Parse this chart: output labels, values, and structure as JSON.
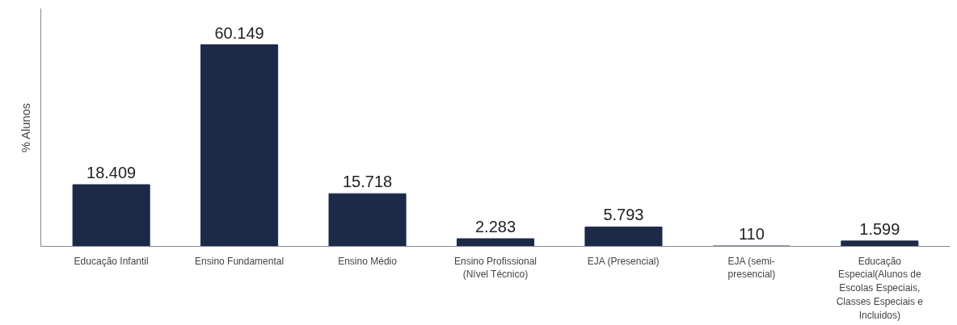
{
  "chart_data": {
    "type": "bar",
    "ylabel": "% Alunos",
    "categories": [
      "Educação Infantil",
      "Ensino Fundamental",
      "Ensino Médio",
      "Ensino Profissional (Nível Técnico)",
      "EJA (Presencial)",
      "EJA (semi-presencial)",
      "Educação Especial(Alunos de Escolas Especiais, Classes Especiais e Incluidos)"
    ],
    "values": [
      18409,
      60149,
      15718,
      2283,
      5793,
      110,
      1599
    ],
    "value_labels": [
      "18.409",
      "60.149",
      "15.718",
      "2.283",
      "5.793",
      "110",
      "1.599"
    ],
    "color": "#1c2a48",
    "grid": false,
    "tick_labels": "x"
  }
}
